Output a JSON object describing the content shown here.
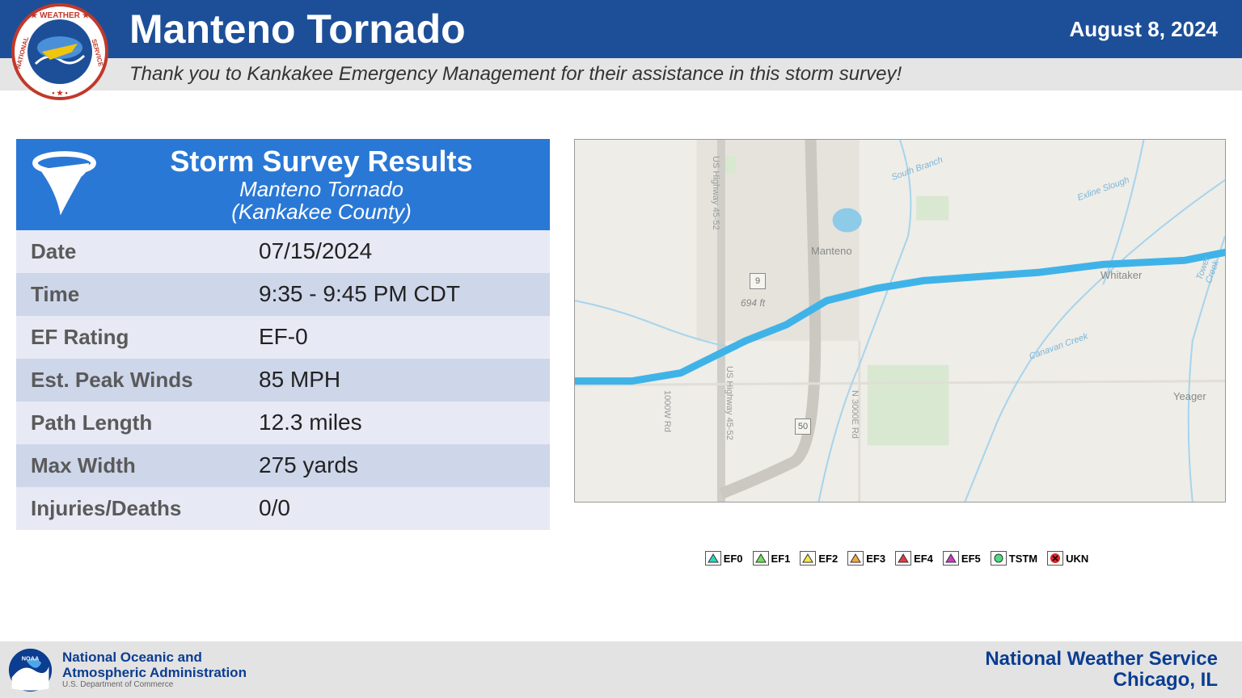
{
  "header": {
    "title": "Manteno Tornado",
    "date": "August 8, 2024",
    "subtitle": "Thank you to Kankakee Emergency Management for their assistance in this storm survey!"
  },
  "survey": {
    "title": "Storm Survey Results",
    "subtitle1": "Manteno Tornado",
    "subtitle2": "(Kankakee County)",
    "rows": [
      {
        "label": "Date",
        "value": "07/15/2024"
      },
      {
        "label": "Time",
        "value": "9:35 - 9:45 PM CDT"
      },
      {
        "label": "EF Rating",
        "value": "EF-0"
      },
      {
        "label": "Est. Peak Winds",
        "value": "85 MPH"
      },
      {
        "label": "Path Length",
        "value": "12.3 miles"
      },
      {
        "label": "Max Width",
        "value": "275 yards"
      },
      {
        "label": "Injuries/Deaths",
        "value": "0/0"
      }
    ]
  },
  "map": {
    "bg_color": "#eeede8",
    "road_color": "#d0cec8",
    "water_color": "#b7ddf0",
    "creek_color": "#a7d4ec",
    "path_color": "#3fb3e8",
    "labels": {
      "manteno": "Manteno",
      "whitaker": "Whitaker",
      "yeager": "Yeager",
      "elev": "694 ft",
      "us45": "US Highway 45-52",
      "rd1000w": "1000W Rd",
      "rd3000e": "N 3000E Rd",
      "sbranch": "South Branch",
      "exline": "Exline Slough",
      "canavan": "Canavan Creek",
      "tower": "Tower Creek",
      "shield9": "9",
      "shield50": "50"
    },
    "path_points": "0,300 70,300 130,290 160,275 210,250 260,230 310,200 370,185 430,175 500,170 570,165 650,155 750,150 800,140"
  },
  "legend": {
    "items": [
      {
        "label": "EF0",
        "fill": "#2dd4bf",
        "shape": "tri"
      },
      {
        "label": "EF1",
        "fill": "#6ee25a",
        "shape": "tri"
      },
      {
        "label": "EF2",
        "fill": "#f6e749",
        "shape": "tri"
      },
      {
        "label": "EF3",
        "fill": "#f5a742",
        "shape": "tri"
      },
      {
        "label": "EF4",
        "fill": "#e63946",
        "shape": "tri"
      },
      {
        "label": "EF5",
        "fill": "#c83dc8",
        "shape": "tri"
      },
      {
        "label": "TSTM",
        "fill": "#4ade80",
        "shape": "dot"
      },
      {
        "label": "UKN",
        "fill": "#dc2626",
        "shape": "x"
      }
    ]
  },
  "footer": {
    "noaa1": "National Oceanic and",
    "noaa2": "Atmospheric Administration",
    "noaa3": "U.S. Department of Commerce",
    "nws1": "National Weather Service",
    "nws2": "Chicago, IL"
  },
  "colors": {
    "header_bg": "#1d4f99",
    "survey_header_bg": "#2a78d6",
    "row_even": "#ced6ea",
    "row_odd": "#e7eaf4"
  }
}
